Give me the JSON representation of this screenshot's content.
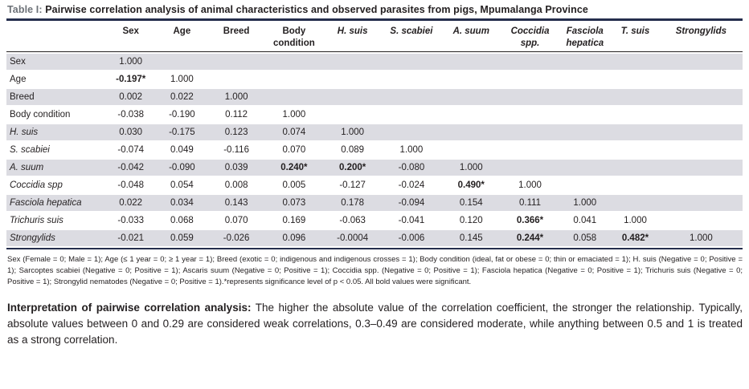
{
  "title": {
    "label": "Table I:",
    "text": "Pairwise correlation analysis of animal characteristics and observed parasites from pigs, Mpumalanga Province"
  },
  "table": {
    "columns": [
      {
        "label": "Sex",
        "italic": false
      },
      {
        "label": "Age",
        "italic": false
      },
      {
        "label": "Breed",
        "italic": false
      },
      {
        "label": "Body condition",
        "italic": false
      },
      {
        "label": "H. suis",
        "italic": true
      },
      {
        "label": "S. scabiei",
        "italic": true
      },
      {
        "label": "A. suum",
        "italic": true
      },
      {
        "label": "Coccidia spp.",
        "italic": true
      },
      {
        "label": "Fasciola hepatica",
        "italic": true
      },
      {
        "label": "T. suis",
        "italic": true
      },
      {
        "label": "Strongylids",
        "italic": true
      }
    ],
    "rows": [
      {
        "label": "Sex",
        "italic": false,
        "cells": [
          "1.000"
        ]
      },
      {
        "label": "Age",
        "italic": false,
        "cells": [
          "-0.197*",
          "1.000"
        ]
      },
      {
        "label": "Breed",
        "italic": false,
        "cells": [
          "0.002",
          "0.022",
          "1.000"
        ]
      },
      {
        "label": "Body condition",
        "italic": false,
        "cells": [
          "-0.038",
          "-0.190",
          "0.112",
          "1.000"
        ]
      },
      {
        "label": "H. suis",
        "italic": true,
        "cells": [
          "0.030",
          "-0.175",
          "0.123",
          "0.074",
          "1.000"
        ]
      },
      {
        "label": "S. scabiei",
        "italic": true,
        "cells": [
          "-0.074",
          "0.049",
          "-0.116",
          "0.070",
          "0.089",
          "1.000"
        ]
      },
      {
        "label": "A. suum",
        "italic": true,
        "cells": [
          "-0.042",
          "-0.090",
          "0.039",
          "0.240*",
          "0.200*",
          "-0.080",
          "1.000"
        ]
      },
      {
        "label": "Coccidia spp",
        "italic": true,
        "cells": [
          "-0.048",
          "0.054",
          "0.008",
          "0.005",
          "-0.127",
          "-0.024",
          "0.490*",
          "1.000"
        ]
      },
      {
        "label": "Fasciola hepatica",
        "italic": true,
        "cells": [
          "0.022",
          "0.034",
          "0.143",
          "0.073",
          "0.178",
          "-0.094",
          "0.154",
          "0.111",
          "1.000"
        ]
      },
      {
        "label": "Trichuris suis",
        "italic": true,
        "cells": [
          "-0.033",
          "0.068",
          "0.070",
          "0.169",
          "-0.063",
          "-0.041",
          "0.120",
          "0.366*",
          "0.041",
          "1.000"
        ]
      },
      {
        "label": "Strongylids",
        "italic": true,
        "cells": [
          "-0.021",
          "0.059",
          "-0.026",
          "0.096",
          "-0.0004",
          "-0.006",
          "0.145",
          "0.244*",
          "0.058",
          "0.482*",
          "1.000"
        ]
      }
    ]
  },
  "footnote": "Sex (Female = 0; Male = 1); Age (≤ 1 year = 0; ≥ 1 year = 1); Breed (exotic = 0; indigenous and indigenous crosses = 1); Body condition (ideal, fat or obese = 0; thin or emaciated = 1); H. suis (Negative = 0; Positive = 1); Sarcoptes scabiei (Negative = 0; Positive = 1); Ascaris suum (Negative = 0; Positive = 1); Coccidia spp. (Negative = 0; Positive = 1); Fasciola hepatica (Negative = 0; Positive = 1); Trichuris suis (Negative = 0; Positive = 1); Strongylid nematodes (Negative = 0; Positive = 1).*represents significance level of p < 0.05. All bold values were significant.",
  "interpretation": {
    "label": "Interpretation of pairwise correlation analysis:",
    "text": " The higher the absolute value of the correlation coefficient, the stronger the relationship. Typically, absolute values between 0 and 0.29 are considered weak correlations, 0.3–0.49 are considered moderate, while anything between 0.5 and 1 is treated as a strong correlation."
  },
  "colors": {
    "rule_navy": "#252e4d",
    "caption_label_gray": "#6d7278",
    "row_stripe": "#dcdce2",
    "text": "#231f20"
  }
}
